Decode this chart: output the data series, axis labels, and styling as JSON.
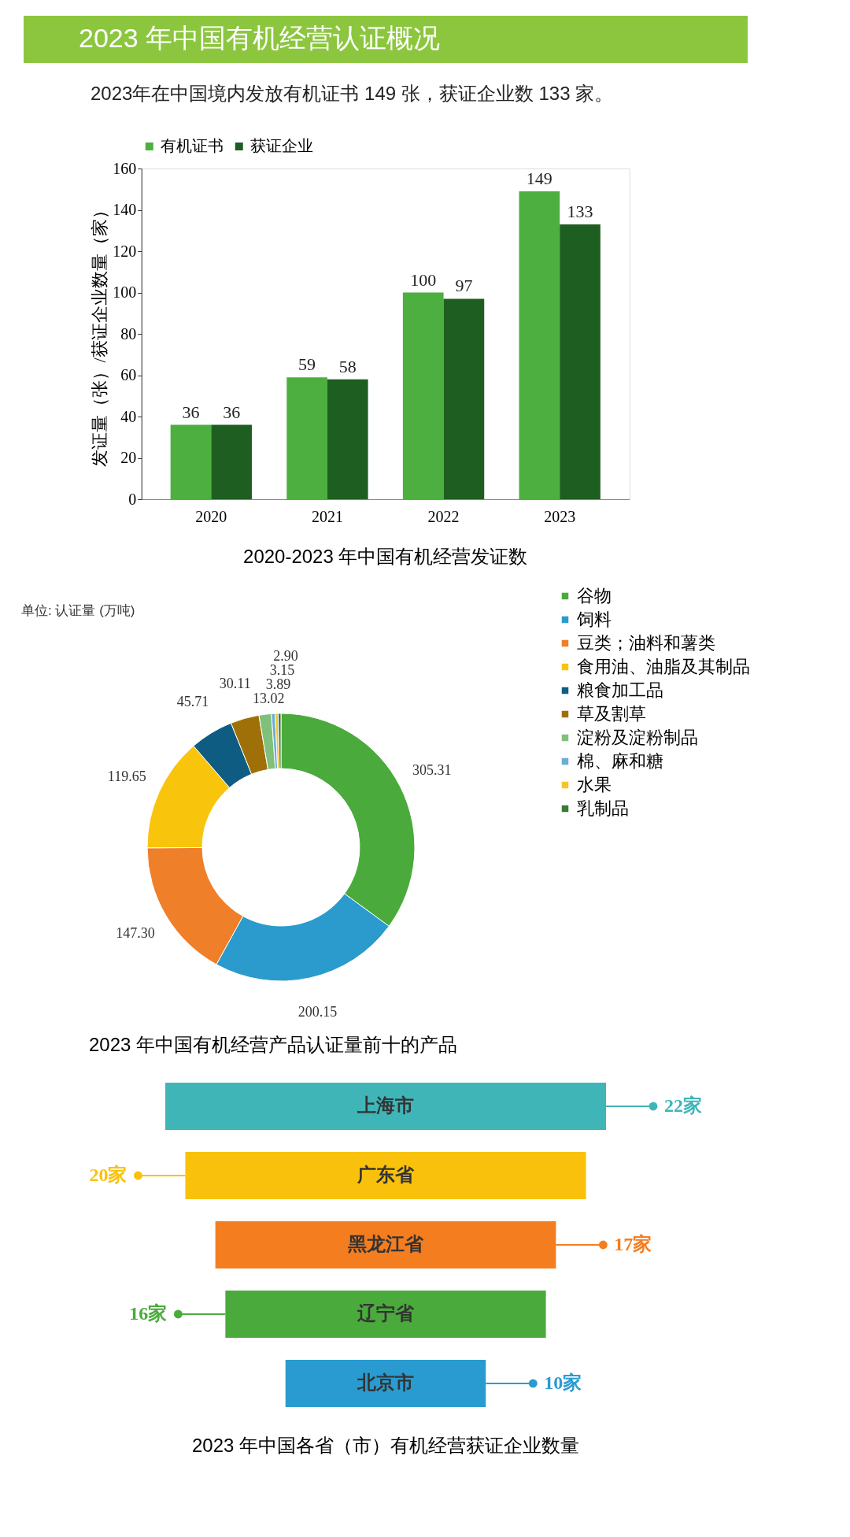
{
  "chart_data": [
    {
      "type": "other",
      "title": "2023 年中国有机经营认证概况",
      "subtitle": "2023年在中国境内发放有机证书 149 张，获证企业数 133 家。"
    },
    {
      "type": "bar",
      "title": "2020-2023 年中国有机经营发证数",
      "ylabel": "发证量（张）/获证企业数量（家）",
      "categories": [
        "2020",
        "2021",
        "2022",
        "2023"
      ],
      "series": [
        {
          "name": "有机证书",
          "color": "#4caf3f",
          "values": [
            36,
            59,
            100,
            149
          ]
        },
        {
          "name": "获证企业",
          "color": "#1e5e20",
          "values": [
            36,
            58,
            97,
            133
          ]
        }
      ],
      "ylim": [
        0,
        160
      ],
      "yticks": [
        0,
        20,
        40,
        60,
        80,
        100,
        120,
        140,
        160
      ],
      "grid": false,
      "legend": "top",
      "data_labels": true
    },
    {
      "type": "donut",
      "title": "2023 年中国有机经营产品认证量前十的产品",
      "annotations": [
        "单位: 认证量 (万吨)"
      ],
      "categories": [
        "谷物",
        "饲料",
        "豆类；油料和薯类",
        "食用油、油脂及其制品",
        "粮食加工品",
        "草及割草",
        "淀粉及淀粉制品",
        "棉、麻和糖",
        "水果",
        "乳制品"
      ],
      "values": [
        305.31,
        200.15,
        147.3,
        119.65,
        45.71,
        30.11,
        13.02,
        3.89,
        3.15,
        2.9
      ],
      "value_labels": [
        "305.31",
        "200.15",
        "147.30",
        "119.65",
        "45.71",
        "30.11",
        "13.02",
        "3.89",
        "3.15",
        "2.90"
      ],
      "colors": [
        "#4aab3c",
        "#2a9bcc",
        "#f07f2a",
        "#f9c40c",
        "#0f5c82",
        "#a07008",
        "#7fc07a",
        "#6aaed4",
        "#f6c52a",
        "#3a7a34"
      ],
      "legend": "right"
    },
    {
      "type": "other",
      "title": "2023 年中国各省（市）有机经营获证企业数量",
      "categories": [
        "上海市",
        "广东省",
        "黑龙江省",
        "辽宁省",
        "北京市"
      ],
      "values": [
        22,
        20,
        17,
        16,
        10
      ],
      "value_labels": [
        "22家",
        "20家",
        "17家",
        "16家",
        "10家"
      ],
      "colors": [
        "#3fb5b8",
        "#f9c10c",
        "#f47d20",
        "#4aab3c",
        "#2a9bd0"
      ]
    }
  ]
}
